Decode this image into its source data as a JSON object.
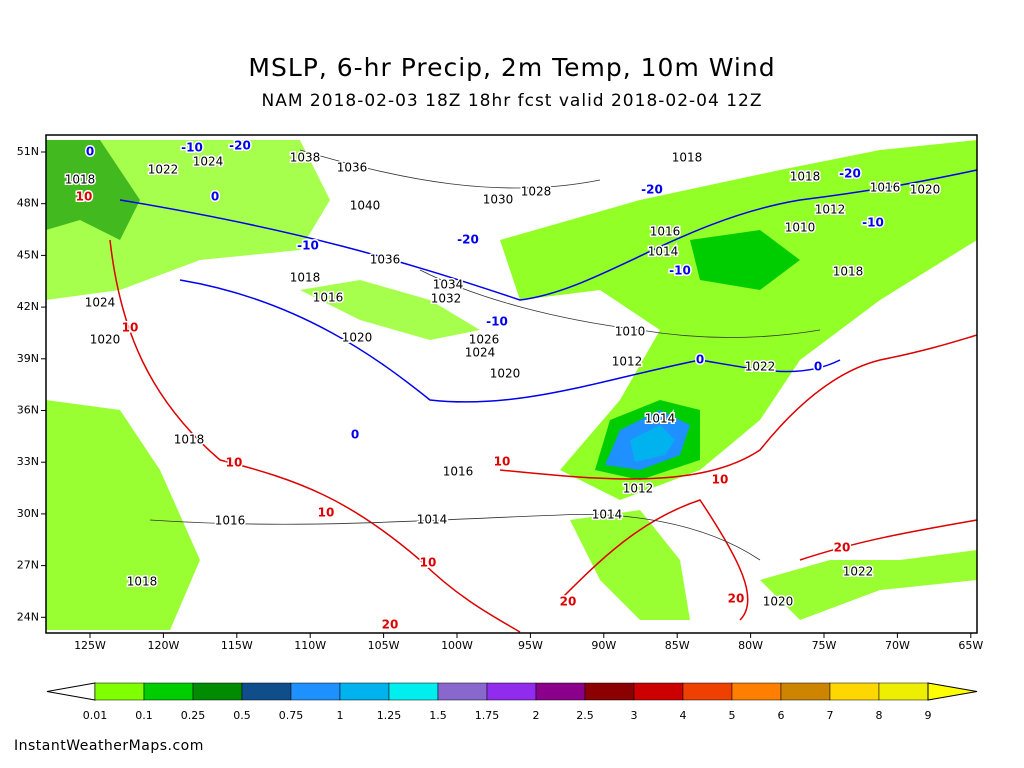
{
  "header": {
    "title": "MSLP, 6-hr Precip, 2m Temp, 10m Wind",
    "subtitle": "NAM 2018-02-03 18Z 18hr fcst valid 2018-02-04 12Z"
  },
  "map": {
    "lat_labels": [
      "51N",
      "48N",
      "45N",
      "42N",
      "39N",
      "36N",
      "33N",
      "30N",
      "27N",
      "24N"
    ],
    "lon_labels": [
      "125W",
      "120W",
      "115W",
      "110W",
      "105W",
      "100W",
      "95W",
      "90W",
      "85W",
      "80W",
      "75W",
      "70W",
      "65W"
    ],
    "pressure_labels": [
      "1018",
      "1022",
      "1024",
      "1038",
      "1036",
      "1040",
      "1030",
      "1028",
      "1018",
      "1018",
      "1016",
      "1020",
      "1012",
      "1010",
      "1016",
      "1014",
      "1018",
      "1036",
      "1034",
      "1032",
      "1016",
      "1018",
      "1020",
      "1026",
      "1024",
      "1020",
      "1010",
      "1012",
      "1022",
      "1014",
      "1012",
      "1014",
      "1016",
      "1014",
      "1016",
      "1018",
      "1018",
      "1022",
      "1020",
      "1024",
      "1020"
    ],
    "cold_temp_labels": [
      "0",
      "-10",
      "-20",
      "-20",
      "-20",
      "-20",
      "-10",
      "-10",
      "-10",
      "-10",
      "0",
      "0",
      "0",
      "0"
    ],
    "warm_temp_labels": [
      "10",
      "10",
      "10",
      "10",
      "10",
      "10",
      "20",
      "20",
      "20",
      "10",
      "20"
    ],
    "pressure_color": "#000000",
    "cold_color": "#0000ee",
    "warm_color": "#dd0000"
  },
  "colorbar": {
    "ticks": [
      0.01,
      0.1,
      0.25,
      0.5,
      0.75,
      1,
      1.25,
      1.5,
      1.75,
      2,
      2.5,
      3,
      4,
      5,
      6,
      7,
      8,
      9
    ],
    "colors": [
      "#7fff00",
      "#00cd00",
      "#008b00",
      "#104e8b",
      "#1e90ff",
      "#00b2ee",
      "#00eeee",
      "#8968cd",
      "#912cee",
      "#8b008b",
      "#8b0000",
      "#cd0000",
      "#ee4000",
      "#ff7f00",
      "#cd8500",
      "#ffd700",
      "#eeee00",
      "#ffff00"
    ]
  },
  "footer": {
    "credit": "InstantWeatherMaps.com"
  }
}
